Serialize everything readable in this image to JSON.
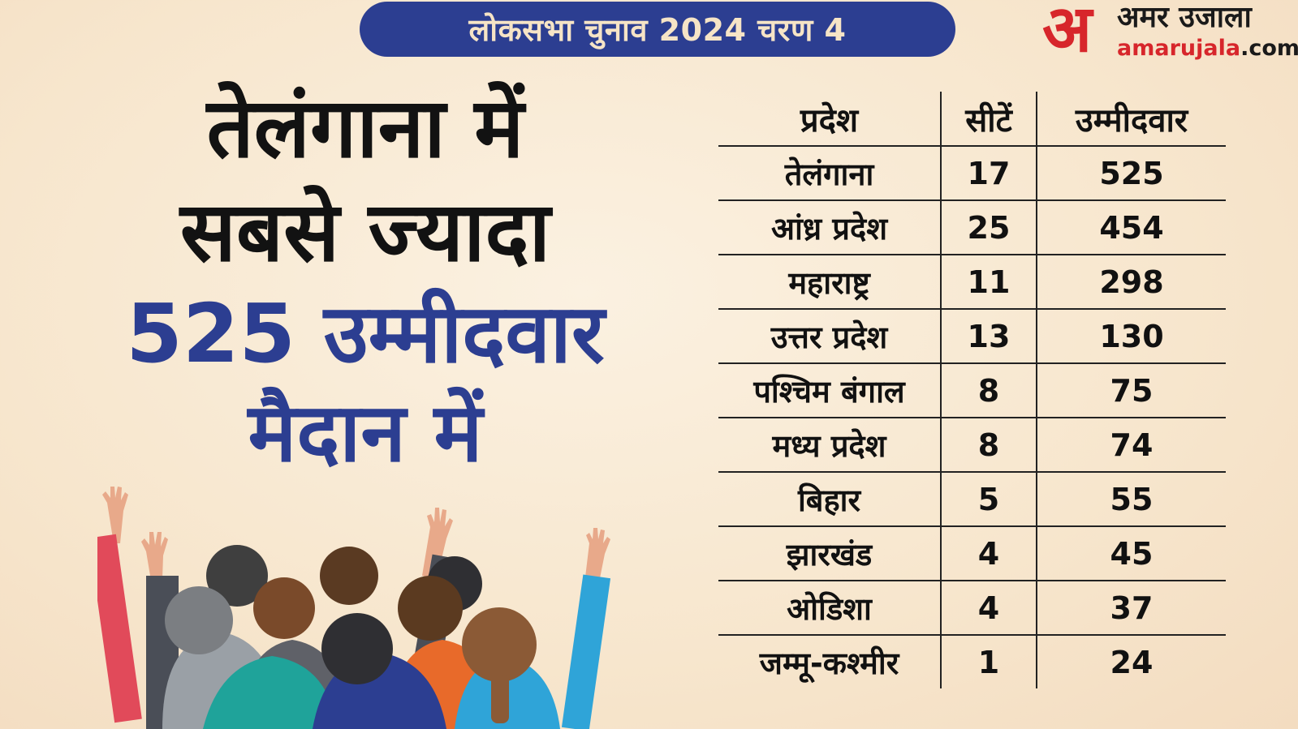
{
  "banner": {
    "text": "लोकसभा चुनाव 2024 चरण 4"
  },
  "logo": {
    "mark": "अ",
    "hindi": "अमर उजाला",
    "english_name": "amarujala",
    "english_domain": ".com"
  },
  "headline": {
    "line1": "तेलंगाना में",
    "line2": "सबसे ज्यादा",
    "line3": "525 उम्मीदवार",
    "line4": "मैदान में"
  },
  "table": {
    "headers": [
      "प्रदेश",
      "सीटें",
      "उम्मीदवार"
    ],
    "rows": [
      [
        "तेलंगाना",
        "17",
        "525"
      ],
      [
        "आंध्र प्रदेश",
        "25",
        "454"
      ],
      [
        "महाराष्ट्र",
        "11",
        "298"
      ],
      [
        "उत्तर प्रदेश",
        "13",
        "130"
      ],
      [
        "पश्चिम बंगाल",
        "8",
        "75"
      ],
      [
        "मध्य प्रदेश",
        "8",
        "74"
      ],
      [
        "बिहार",
        "5",
        "55"
      ],
      [
        "झारखंड",
        "4",
        "45"
      ],
      [
        "ओडिशा",
        "4",
        "37"
      ],
      [
        "जम्मू-कश्मीर",
        "1",
        "24"
      ]
    ]
  },
  "colors": {
    "navy": "#2c3e91",
    "logo_red": "#d7262b",
    "background": "#f7e6cd",
    "text": "#121212"
  },
  "illustration": {
    "name": "crowd-raising-hands"
  }
}
